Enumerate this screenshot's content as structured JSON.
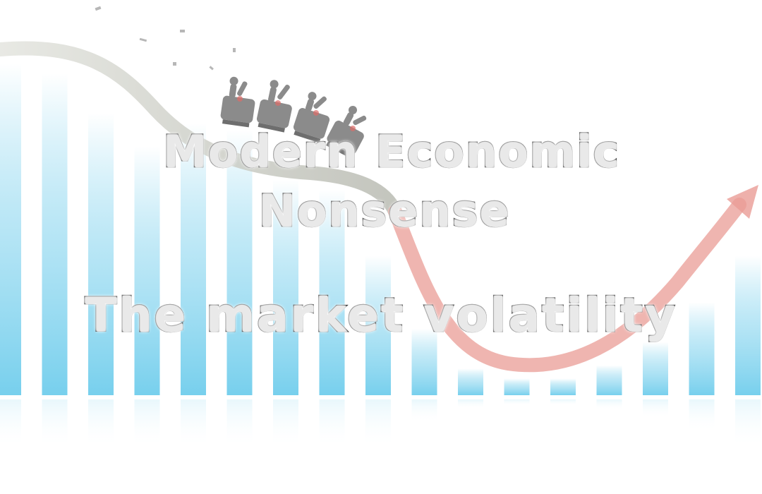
{
  "title_lines": [
    "Modern Economic",
    "Nonsense"
  ],
  "subtitle": "The market volatility",
  "illustration": {
    "bar_levels": [
      1.0,
      0.97,
      0.85,
      0.75,
      0.82,
      0.8,
      0.65,
      0.62,
      0.42,
      0.2,
      0.08,
      0.05,
      0.05,
      0.09,
      0.16,
      0.28,
      0.42
    ],
    "bar_color": "#7fd3ee",
    "curve_descending_color": "#c9cbc2",
    "curve_ascending_color": "#ea9c96",
    "icons": [
      "roller-coaster-car-icon",
      "arrow-up-icon"
    ]
  }
}
